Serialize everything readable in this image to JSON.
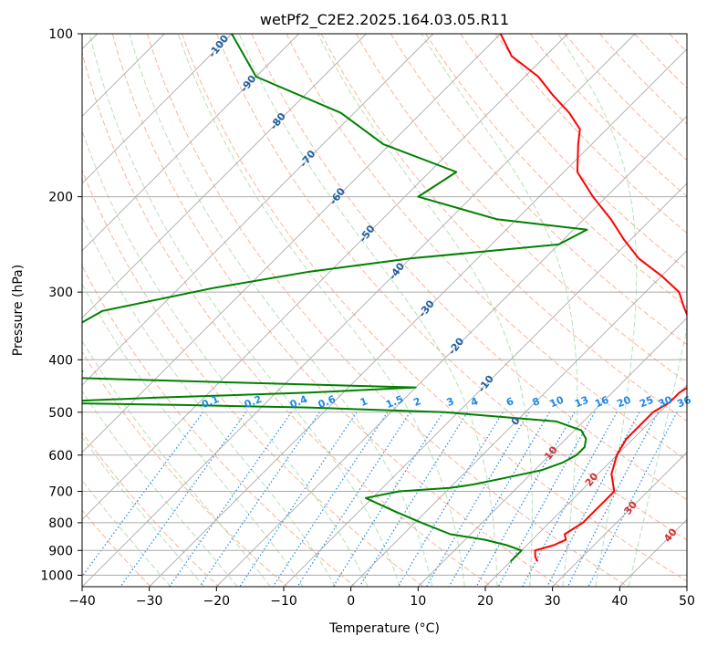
{
  "chart_data": {
    "type": "skew-t",
    "title": "wetPf2_C2E2.2025.164.03.05.R11",
    "xlabel": "Temperature (°C)",
    "ylabel": "Pressure (hPa)",
    "xlim": [
      -40,
      50
    ],
    "ylim": [
      1050,
      100
    ],
    "x_ticks": [
      -40,
      -30,
      -20,
      -10,
      0,
      10,
      20,
      30,
      40,
      50
    ],
    "x_tick_labels": [
      "−40",
      "−30",
      "−20",
      "−10",
      "0",
      "10",
      "20",
      "30",
      "40",
      "50"
    ],
    "y_ticks": [
      100,
      200,
      300,
      400,
      500,
      600,
      700,
      800,
      900,
      1000
    ],
    "y_tick_labels": [
      "100",
      "200",
      "300",
      "400",
      "500",
      "600",
      "700",
      "800",
      "900",
      "1000"
    ],
    "colors": {
      "temperature": "#ff0000",
      "dewpoint": "#008000",
      "isotherm": "#aaaaaa",
      "isobar": "#aaaaaa",
      "dry_adiabat": "#f4a582",
      "moist_adiabat": "#a6d8a6",
      "mixing_ratio": "#1e88e5",
      "dry_label": "#1f5f9f",
      "moist_label": "#d32f2f"
    },
    "series": [
      {
        "name": "temperature",
        "pressure": [
          943,
          925,
          900,
          880,
          860,
          840,
          800,
          760,
          720,
          700,
          650,
          600,
          560,
          520,
          500,
          480,
          460,
          440,
          420,
          400,
          380,
          360,
          340,
          320,
          300,
          280,
          260,
          240,
          220,
          200,
          180,
          160,
          150,
          140,
          130,
          120,
          110,
          100
        ],
        "values": [
          24,
          23,
          22,
          24,
          25,
          24,
          25,
          25,
          25,
          25,
          22,
          20,
          19,
          19,
          19,
          20,
          20,
          21,
          21,
          19.5,
          17,
          14,
          11,
          8,
          5,
          0,
          -6,
          -11,
          -16,
          -22,
          -28,
          -32,
          -34,
          -38,
          -43,
          -48,
          -55,
          -60
        ]
      },
      {
        "name": "dewpoint",
        "pressure": [
          943,
          925,
          900,
          880,
          860,
          840,
          800,
          760,
          720,
          700,
          690,
          680,
          660,
          640,
          620,
          600,
          580,
          560,
          540,
          520,
          500,
          490,
          485,
          480,
          470,
          460,
          450,
          440,
          430,
          420,
          410,
          395,
          380,
          350,
          325,
          295,
          275,
          260,
          245,
          230,
          220,
          200,
          180,
          160,
          140,
          120,
          100
        ],
        "values": [
          20,
          20,
          20,
          17,
          13,
          7,
          1,
          -5,
          -11,
          -7,
          0,
          3,
          7,
          11,
          13,
          14,
          14,
          13,
          11,
          6,
          -12,
          -33,
          -52,
          -75,
          -57,
          -35,
          -20,
          -50,
          -78,
          -72,
          -75,
          -85,
          -85,
          -80,
          -78,
          -65,
          -53,
          -40,
          -20,
          -18,
          -33,
          -48,
          -46,
          -61,
          -72,
          -90,
          -100
        ]
      }
    ],
    "dry_adiabat_labels": [
      "-100",
      "-90",
      "-80",
      "-70",
      "-60",
      "-50",
      "-40",
      "-30",
      "-20",
      "-10",
      "0"
    ],
    "moist_adiabat_labels": [
      "10",
      "20",
      "30",
      "40"
    ],
    "mixing_ratio_labels": [
      "0.1",
      "0.2",
      "0.4",
      "0.6",
      "1",
      "1.5",
      "2",
      "3",
      "4",
      "6",
      "8",
      "10",
      "13",
      "16",
      "20",
      "25",
      "30",
      "36"
    ]
  }
}
